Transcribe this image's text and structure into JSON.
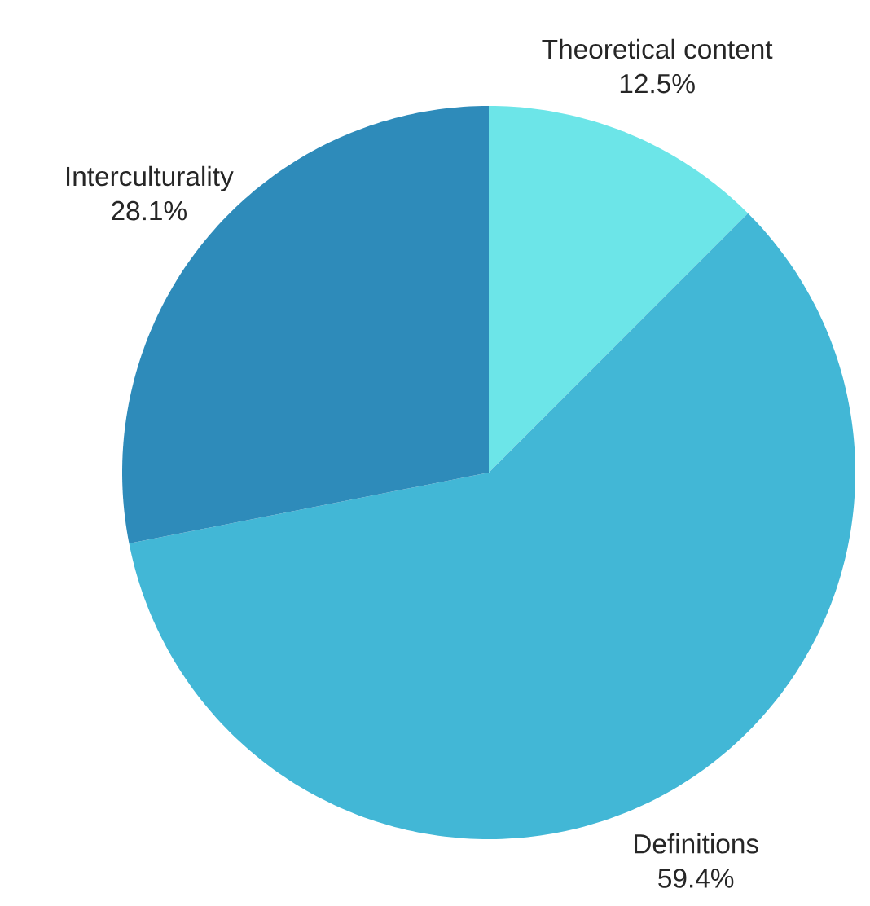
{
  "chart_data": {
    "type": "pie",
    "categories": [
      "Theoretical content",
      "Definitions",
      "Interculturality"
    ],
    "values": [
      12.5,
      59.4,
      28.1
    ],
    "value_labels": [
      "12.5%",
      "59.4%",
      "28.1%"
    ],
    "colors": [
      "#6ce5e8",
      "#42b7d6",
      "#2e8bba"
    ]
  }
}
